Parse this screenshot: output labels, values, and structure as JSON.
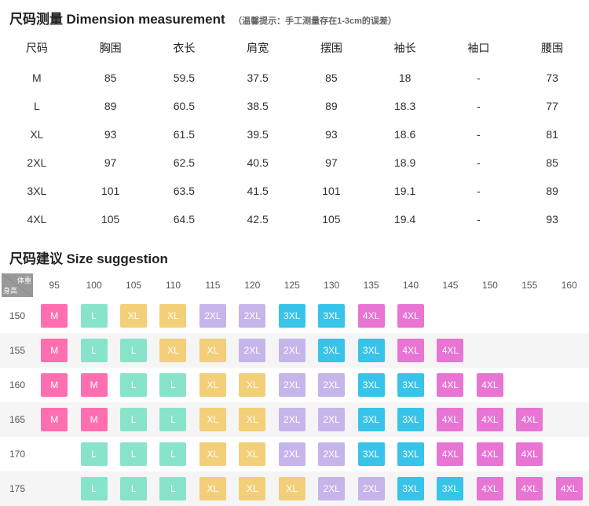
{
  "dimension": {
    "title_cn": "尺码测量",
    "title_en": "Dimension measurement",
    "note": "（温馨提示：手工测量存在1-3cm的误差）",
    "title_fontsize": 17,
    "note_fontsize": 11,
    "headers": [
      "尺码",
      "胸围",
      "衣长",
      "肩宽",
      "摆围",
      "袖长",
      "袖口",
      "腰围"
    ],
    "rows": [
      [
        "M",
        "85",
        "59.5",
        "37.5",
        "85",
        "18",
        "-",
        "73"
      ],
      [
        "L",
        "89",
        "60.5",
        "38.5",
        "89",
        "18.3",
        "-",
        "77"
      ],
      [
        "XL",
        "93",
        "61.5",
        "39.5",
        "93",
        "18.6",
        "-",
        "81"
      ],
      [
        "2XL",
        "97",
        "62.5",
        "40.5",
        "97",
        "18.9",
        "-",
        "85"
      ],
      [
        "3XL",
        "101",
        "63.5",
        "41.5",
        "101",
        "19.1",
        "-",
        "89"
      ],
      [
        "4XL",
        "105",
        "64.5",
        "42.5",
        "105",
        "19.4",
        "-",
        "93"
      ]
    ],
    "cell_fontsize": 14,
    "text_color": "#333333"
  },
  "suggestion": {
    "title_cn": "尺码建议",
    "title_en": "Size suggestion",
    "corner_height_label": "身高",
    "corner_weight_label": "体重",
    "weights": [
      "95",
      "100",
      "105",
      "110",
      "115",
      "120",
      "125",
      "130",
      "135",
      "140",
      "145",
      "150",
      "155",
      "160"
    ],
    "heights": [
      "150",
      "155",
      "160",
      "165",
      "170",
      "175"
    ],
    "grid": [
      [
        "M",
        "L",
        "XL",
        "XL",
        "2XL",
        "2XL",
        "3XL",
        "3XL",
        "4XL",
        "4XL",
        "",
        "",
        "",
        ""
      ],
      [
        "M",
        "L",
        "L",
        "XL",
        "XL",
        "2XL",
        "2XL",
        "3XL",
        "3XL",
        "4XL",
        "4XL",
        "",
        "",
        ""
      ],
      [
        "M",
        "M",
        "L",
        "L",
        "XL",
        "XL",
        "2XL",
        "2XL",
        "3XL",
        "3XL",
        "4XL",
        "4XL",
        "",
        ""
      ],
      [
        "M",
        "M",
        "L",
        "L",
        "XL",
        "XL",
        "2XL",
        "2XL",
        "3XL",
        "3XL",
        "4XL",
        "4XL",
        "4XL",
        ""
      ],
      [
        "",
        "L",
        "L",
        "L",
        "XL",
        "XL",
        "2XL",
        "2XL",
        "3XL",
        "3XL",
        "4XL",
        "4XL",
        "4XL",
        ""
      ],
      [
        "",
        "L",
        "L",
        "L",
        "XL",
        "XL",
        "XL",
        "2XL",
        "2XL",
        "3XL",
        "3XL",
        "4XL",
        "4XL",
        "4XL"
      ]
    ],
    "size_colors": {
      "M": "#ff6fb0",
      "L": "#88e3cb",
      "XL": "#f3cf79",
      "2XL": "#c6b5ea",
      "3XL": "#38c4e8",
      "4XL": "#e874d3"
    },
    "row_alt_bg": "#f5f5f5",
    "corner_bg": "#999999",
    "chip_height": 30,
    "chip_fontsize": 12
  }
}
